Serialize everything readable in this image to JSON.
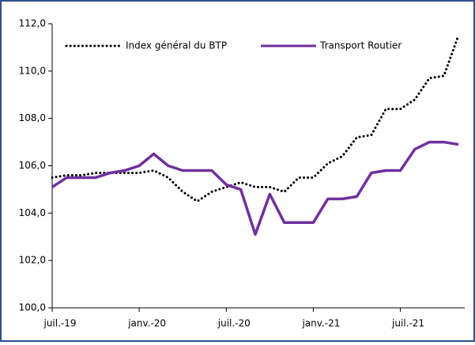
{
  "chart_data": {
    "type": "line",
    "categories": [
      "juil.-19",
      null,
      null,
      null,
      null,
      null,
      "janv.-20",
      null,
      null,
      null,
      null,
      null,
      "juil.-20",
      null,
      null,
      null,
      null,
      null,
      "janv.-21",
      null,
      null,
      null,
      null,
      null,
      "juil.-21",
      null,
      null,
      null,
      null
    ],
    "series": [
      {
        "name": "Index général du BTP",
        "color": "#000000",
        "dash": "dotted",
        "values": [
          105.5,
          105.6,
          105.6,
          105.7,
          105.7,
          105.7,
          105.7,
          105.8,
          105.5,
          104.9,
          104.5,
          104.9,
          105.1,
          105.3,
          105.1,
          105.1,
          104.9,
          105.5,
          105.5,
          106.1,
          106.4,
          107.2,
          107.3,
          108.4,
          108.4,
          108.8,
          109.7,
          109.8,
          111.5
        ]
      },
      {
        "name": "Transport Routier",
        "color": "#7030a0",
        "dash": "solid",
        "values": [
          105.1,
          105.5,
          105.5,
          105.5,
          105.7,
          105.8,
          106.0,
          106.5,
          106.0,
          105.8,
          105.8,
          105.8,
          105.2,
          105.0,
          103.1,
          104.8,
          103.6,
          103.6,
          103.6,
          104.6,
          104.6,
          104.7,
          105.7,
          105.8,
          105.8,
          106.7,
          107.0,
          107.0,
          106.9
        ]
      }
    ],
    "ylim": [
      100,
      112
    ],
    "yticks": [
      {
        "value": 100,
        "label": "100,0"
      },
      {
        "value": 102,
        "label": "102,0"
      },
      {
        "value": 104,
        "label": "104,0"
      },
      {
        "value": 106,
        "label": "106,0"
      },
      {
        "value": 108,
        "label": "108,0"
      },
      {
        "value": 110,
        "label": "110,0"
      },
      {
        "value": 112,
        "label": "112,0"
      }
    ],
    "legend": "top"
  }
}
